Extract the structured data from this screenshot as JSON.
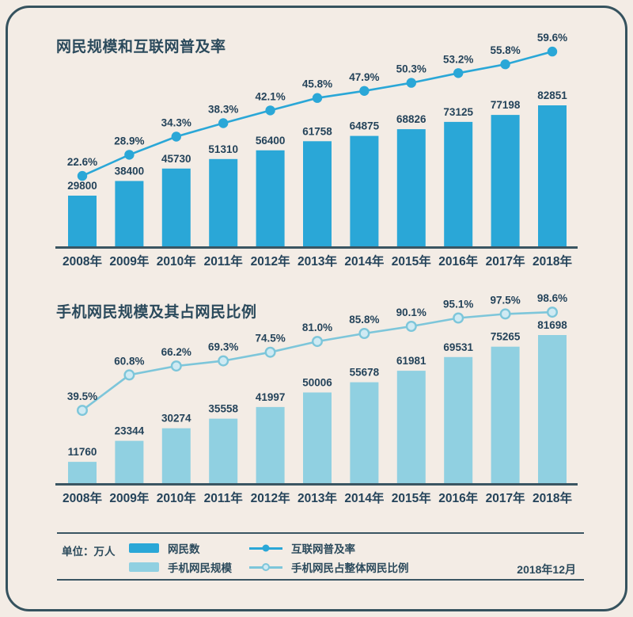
{
  "page": {
    "colors": {
      "background": "#f3ece5",
      "frame_border": "#35525e",
      "text": "#2b4a5c",
      "axis": "#3a5562"
    }
  },
  "chart_data": [
    {
      "type": "bar+line",
      "title": "网民规模和互联网普及率",
      "unit": "万人",
      "categories": [
        "2008年",
        "2009年",
        "2010年",
        "2011年",
        "2012年",
        "2013年",
        "2014年",
        "2015年",
        "2016年",
        "2017年",
        "2018年"
      ],
      "bar_series": {
        "name": "网民数",
        "values": [
          29800,
          38400,
          45730,
          51310,
          56400,
          61758,
          64875,
          68826,
          73125,
          77198,
          82851
        ],
        "color": "#2aa7d7"
      },
      "line_series": {
        "name": "互联网普及率",
        "values_pct": [
          22.6,
          28.9,
          34.3,
          38.3,
          42.1,
          45.8,
          47.9,
          50.3,
          53.2,
          55.8,
          59.6
        ],
        "color": "#2aa7d7",
        "marker": "filled"
      },
      "layout": {
        "grid": false,
        "value_labels": true,
        "x_axis_only": true
      }
    },
    {
      "type": "bar+line",
      "title": "手机网民规模及其占网民比例",
      "unit": "万人",
      "categories": [
        "2008年",
        "2009年",
        "2010年",
        "2011年",
        "2012年",
        "2013年",
        "2014年",
        "2015年",
        "2016年",
        "2017年",
        "2018年"
      ],
      "bar_series": {
        "name": "手机网民规模",
        "values": [
          11760,
          23344,
          30274,
          35558,
          41997,
          50006,
          55678,
          61981,
          69531,
          75265,
          81698
        ],
        "color": "#90d0e1"
      },
      "line_series": {
        "name": "手机网民占整体网民比例",
        "values_pct": [
          39.5,
          60.8,
          66.2,
          69.3,
          74.5,
          81.0,
          85.8,
          90.1,
          95.1,
          97.5,
          98.6
        ],
        "color": "#7dc6da",
        "marker": "hollow",
        "marker_fill": "#cfeaf3"
      },
      "layout": {
        "grid": false,
        "value_labels": true,
        "x_axis_only": true
      }
    }
  ],
  "legend": {
    "unit_label": "单位：万人",
    "items": [
      {
        "type": "bar",
        "label": "网民数",
        "color": "#2aa7d7"
      },
      {
        "type": "line",
        "label": "互联网普及率",
        "color": "#2aa7d7",
        "marker": "filled"
      },
      {
        "type": "bar",
        "label": "手机网民规模",
        "color": "#90d0e1"
      },
      {
        "type": "line",
        "label": "手机网民占整体网民比例",
        "color": "#7dc6da",
        "marker": "hollow",
        "marker_fill": "#cfeaf3"
      }
    ],
    "date_label": "2018年12月"
  }
}
